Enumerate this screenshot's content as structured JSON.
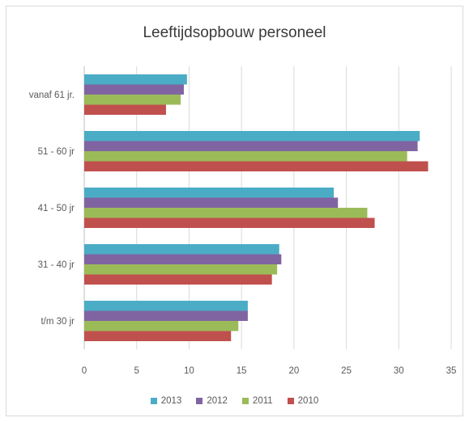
{
  "chart_data": {
    "type": "bar",
    "orientation": "horizontal",
    "title": "Leeftijdsopbouw personeel",
    "categories": [
      "vanaf 61 jr.",
      "51 - 60 jr",
      "41 - 50 jr",
      "31 - 40 jr",
      "t/m 30 jr"
    ],
    "series": [
      {
        "name": "2013",
        "color": "#4bacc6",
        "values": [
          9.8,
          32.0,
          23.8,
          18.6,
          15.6
        ]
      },
      {
        "name": "2012",
        "color": "#8064a2",
        "values": [
          9.5,
          31.8,
          24.2,
          18.8,
          15.6
        ]
      },
      {
        "name": "2011",
        "color": "#9bbb59",
        "values": [
          9.2,
          30.8,
          27.0,
          18.4,
          14.7
        ]
      },
      {
        "name": "2010",
        "color": "#c0504d",
        "values": [
          7.8,
          32.8,
          27.7,
          17.9,
          14.0
        ]
      }
    ],
    "xlim": [
      0,
      35
    ],
    "xticks": [
      "0",
      "5",
      "10",
      "15",
      "20",
      "25",
      "30",
      "35"
    ],
    "grid": true,
    "legend_position": "bottom"
  }
}
